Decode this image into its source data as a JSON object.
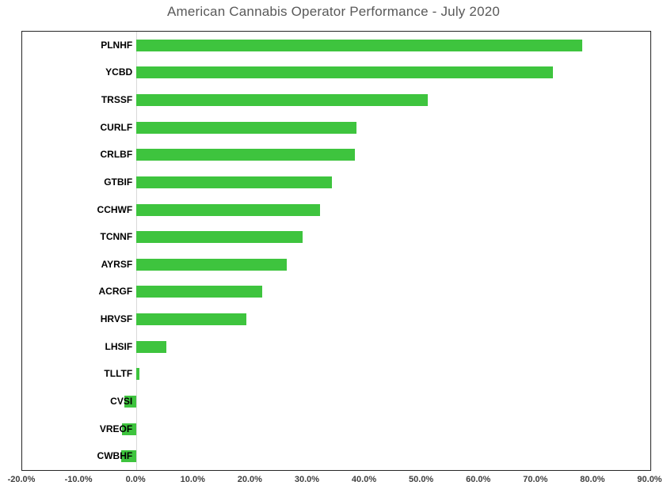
{
  "title": "American Cannabis Operator Performance - July 2020",
  "colors": {
    "bar": "#3ec43e",
    "title_text": "#595959",
    "category_text": "#000000",
    "tick_text": "#404040",
    "plot_border": "#262626",
    "zero_line": "#d9d9d9",
    "background": "#ffffff"
  },
  "chart_data": {
    "type": "bar",
    "orientation": "horizontal",
    "title": "American Cannabis Operator Performance - July 2020",
    "categories": [
      "PLNHF",
      "YCBD",
      "TRSSF",
      "CURLF",
      "CRLBF",
      "GTBIF",
      "CCHWF",
      "TCNNF",
      "AYRSF",
      "ACRGF",
      "HRVSF",
      "LHSIF",
      "TLLTF",
      "CVSI",
      "VREOF",
      "CWBHF"
    ],
    "values": [
      78.1,
      73.0,
      51.0,
      38.5,
      38.3,
      34.3,
      32.2,
      29.1,
      26.4,
      22.1,
      19.3,
      5.2,
      0.5,
      -2.1,
      -2.5,
      -2.7
    ],
    "value_unit": "percent",
    "xlim": [
      -20,
      90
    ],
    "x_ticks": [
      -20,
      -10,
      0,
      10,
      20,
      30,
      40,
      50,
      60,
      70,
      80,
      90
    ],
    "x_tick_labels": [
      "-20.0%",
      "-10.0%",
      "0.0%",
      "10.0%",
      "20.0%",
      "30.0%",
      "40.0%",
      "50.0%",
      "60.0%",
      "70.0%",
      "80.0%",
      "90.0%"
    ],
    "grid": false,
    "legend": false,
    "xlabel": "",
    "ylabel": ""
  }
}
